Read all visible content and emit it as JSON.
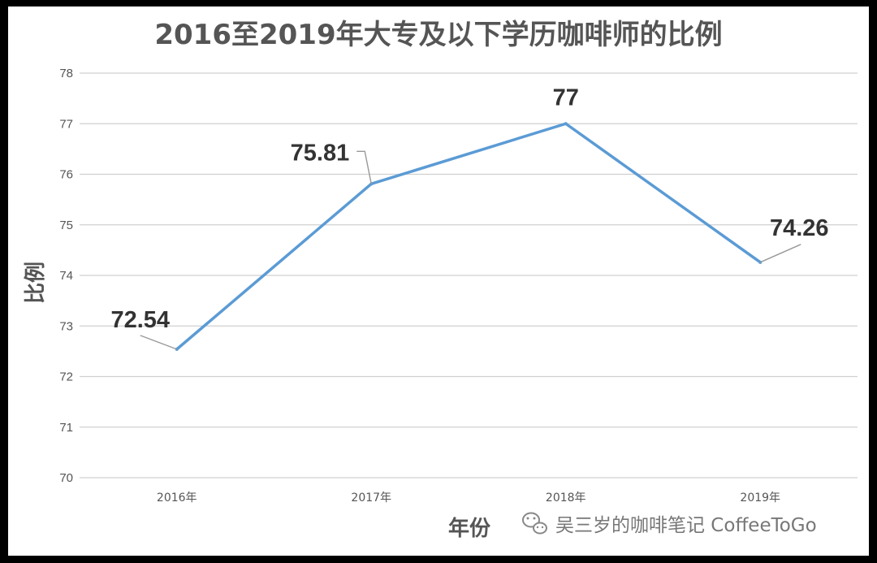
{
  "chart_data": {
    "type": "line",
    "title": "2016至2019年大专及以下学历咖啡师的比例",
    "xlabel": "年份",
    "ylabel": "比例",
    "categories": [
      "2016年",
      "2017年",
      "2018年",
      "2019年"
    ],
    "series": [
      {
        "values": [
          72.54,
          75.81,
          77,
          74.26
        ],
        "labels": [
          "72.54",
          "75.81",
          "77",
          "74.26"
        ]
      }
    ],
    "ylim": [
      70,
      78
    ],
    "yticks": [
      70,
      71,
      72,
      73,
      74,
      75,
      76,
      77,
      78
    ],
    "grid": true,
    "line_color": "#5b9bd5"
  },
  "watermark": {
    "icon": "wechat-icon",
    "text": "吴三岁的咖啡笔记 CoffeeToGo"
  }
}
